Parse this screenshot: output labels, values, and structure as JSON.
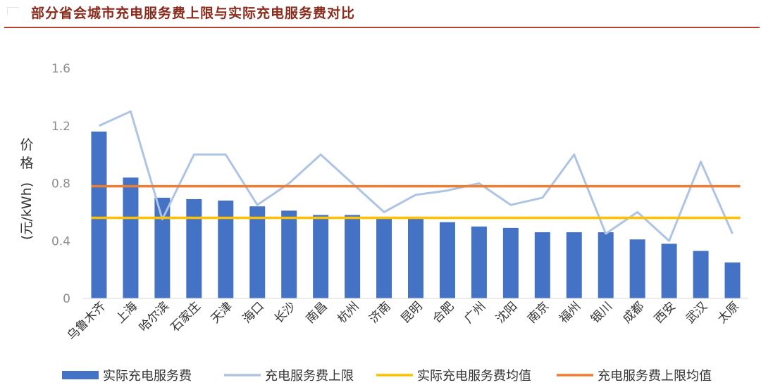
{
  "title": "部分省会城市充电服务费上限与实际充电服务费对比",
  "chart_data": {
    "type": "bar",
    "categories": [
      "乌鲁木齐",
      "上海",
      "哈尔滨",
      "石家庄",
      "天津",
      "海口",
      "长沙",
      "南昌",
      "杭州",
      "济南",
      "昆明",
      "合肥",
      "广州",
      "沈阳",
      "南京",
      "福州",
      "银川",
      "成都",
      "西安",
      "武汉",
      "太原"
    ],
    "ylabel_chars": [
      "价",
      "格"
    ],
    "ylabel_unit": "(元/kWh)",
    "ylim": [
      0,
      1.6
    ],
    "yticks": [
      "0",
      "0.4",
      "0.8",
      "1.2",
      "1.6"
    ],
    "grid": false,
    "legend_position": "bottom",
    "series": [
      {
        "name": "实际充电服务费",
        "kind": "bar",
        "color": "#4472c4",
        "values": [
          1.16,
          0.84,
          0.7,
          0.69,
          0.68,
          0.64,
          0.61,
          0.58,
          0.58,
          0.56,
          0.56,
          0.53,
          0.5,
          0.49,
          0.46,
          0.46,
          0.46,
          0.41,
          0.38,
          0.33,
          0.25
        ]
      },
      {
        "name": "充电服务费上限",
        "kind": "line",
        "color": "#aec4e5",
        "values": [
          1.2,
          1.3,
          0.55,
          1.0,
          1.0,
          0.65,
          0.8,
          1.0,
          0.8,
          0.6,
          0.72,
          0.75,
          0.8,
          0.65,
          0.7,
          1.0,
          0.45,
          0.6,
          0.4,
          0.95,
          0.45
        ]
      },
      {
        "name": "实际充电服务费均值",
        "kind": "hline",
        "color": "#ffc000",
        "value": 0.56
      },
      {
        "name": "充电服务费上限均值",
        "kind": "hline",
        "color": "#ed7d31",
        "value": 0.78
      }
    ]
  }
}
